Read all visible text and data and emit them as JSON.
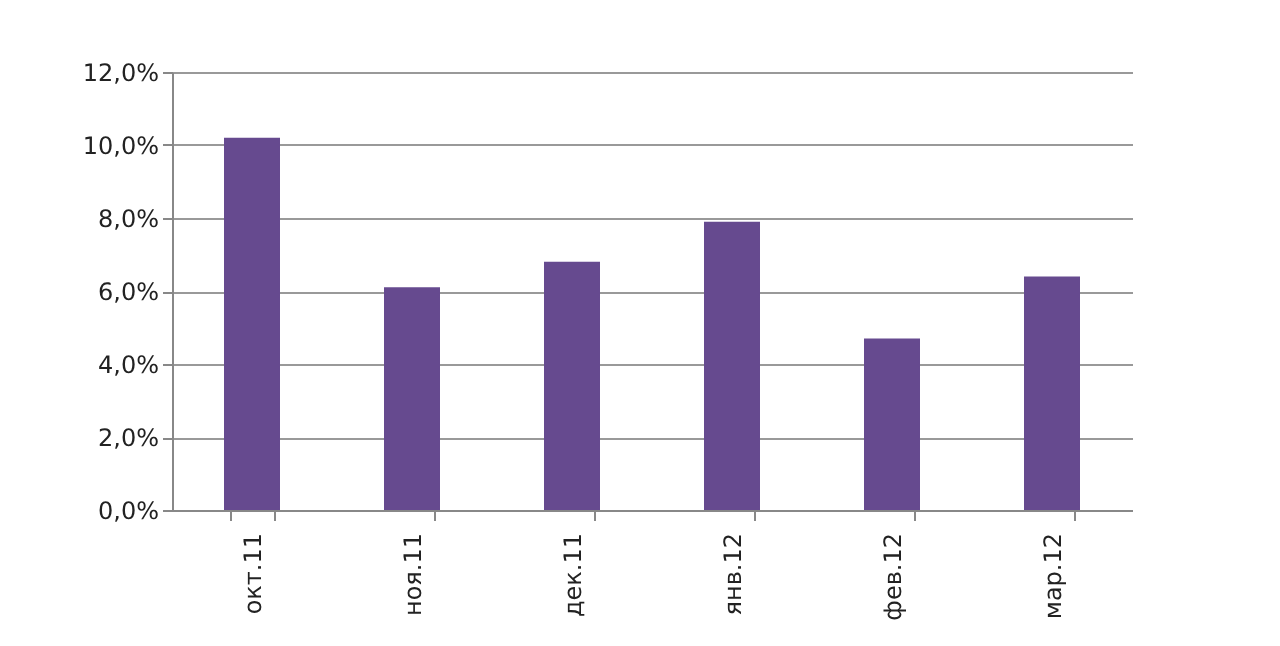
{
  "chart_data": {
    "type": "bar",
    "categories": [
      "окт.11",
      "ноя.11",
      "дек.11",
      "янв.12",
      "фев.12",
      "мар.12"
    ],
    "values": [
      10.2,
      6.1,
      6.8,
      7.9,
      4.7,
      6.4
    ],
    "color": "#664a8f",
    "ylim": [
      0,
      12
    ],
    "yticks": [
      {
        "value": 0,
        "label": "0,0%"
      },
      {
        "value": 2,
        "label": "2,0%"
      },
      {
        "value": 4,
        "label": "4,0%"
      },
      {
        "value": 6,
        "label": "6,0%"
      },
      {
        "value": 8,
        "label": "8,0%"
      },
      {
        "value": 10,
        "label": "10,0%"
      },
      {
        "value": 12,
        "label": "12,0%"
      }
    ],
    "grid": "y"
  }
}
